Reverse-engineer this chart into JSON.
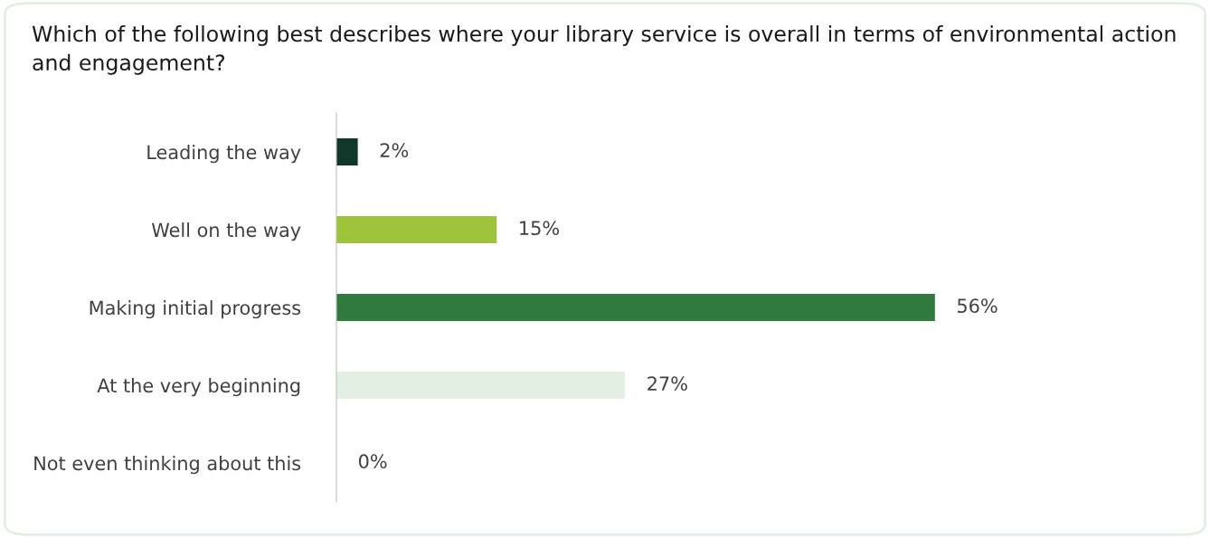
{
  "chart_data": {
    "type": "bar",
    "orientation": "horizontal",
    "title": "Which of the following best describes where your library service is overall in terms of environmental action and engagement?",
    "categories": [
      "Leading the way",
      "Well on the way",
      "Making initial progress",
      "At the very beginning",
      "Not even thinking about this"
    ],
    "values": [
      2,
      15,
      56,
      27,
      0
    ],
    "colors": [
      "#10372a",
      "#9dc33b",
      "#2f7a3c",
      "#e3efe2",
      "#cccccc"
    ],
    "value_labels": [
      "2%",
      "15%",
      "56%",
      "27%",
      "0%"
    ],
    "grid": false,
    "legend": false
  }
}
